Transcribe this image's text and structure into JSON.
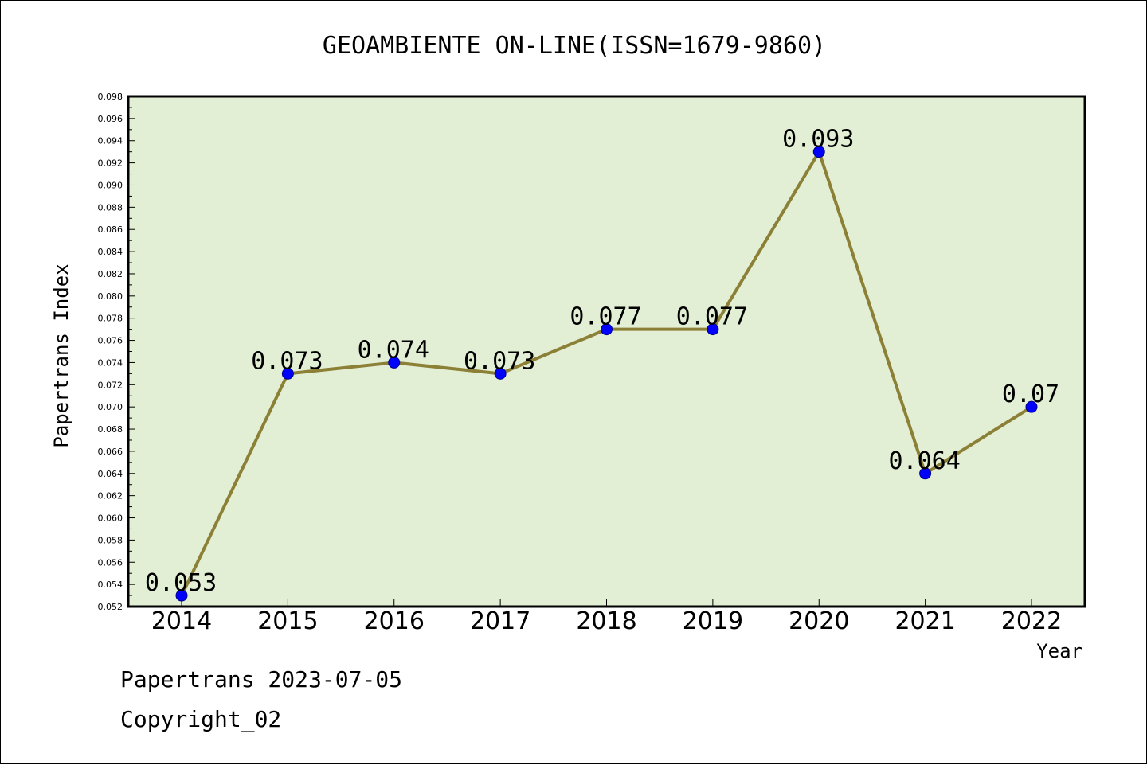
{
  "chart_data": {
    "type": "line",
    "title": "GEOAMBIENTE ON-LINE(ISSN=1679-9860)",
    "xlabel": "Year",
    "ylabel": "Papertrans Index",
    "categories": [
      "2014",
      "2015",
      "2016",
      "2017",
      "2018",
      "2019",
      "2020",
      "2021",
      "2022"
    ],
    "values": [
      0.053,
      0.073,
      0.074,
      0.073,
      0.077,
      0.077,
      0.093,
      0.064,
      0.07
    ],
    "data_labels": [
      "0.053",
      "0.073",
      "0.074",
      "0.073",
      "0.077",
      "0.077",
      "0.093",
      "0.064",
      "0.07"
    ],
    "ylim": [
      0.052,
      0.098
    ],
    "yticks": [
      "0.052",
      "0.054",
      "0.056",
      "0.058",
      "0.060",
      "0.062",
      "0.064",
      "0.066",
      "0.068",
      "0.070",
      "0.072",
      "0.074",
      "0.076",
      "0.078",
      "0.080",
      "0.082",
      "0.084",
      "0.086",
      "0.088",
      "0.090",
      "0.092",
      "0.094",
      "0.096",
      "0.098"
    ],
    "grid": false,
    "legend": "none",
    "colors": {
      "plot_background": "#e2efd5",
      "line": "#8b8036",
      "marker": "#0000ff"
    }
  },
  "footer": {
    "line1": "Papertrans 2023-07-05",
    "line2": "Copyright_02"
  }
}
